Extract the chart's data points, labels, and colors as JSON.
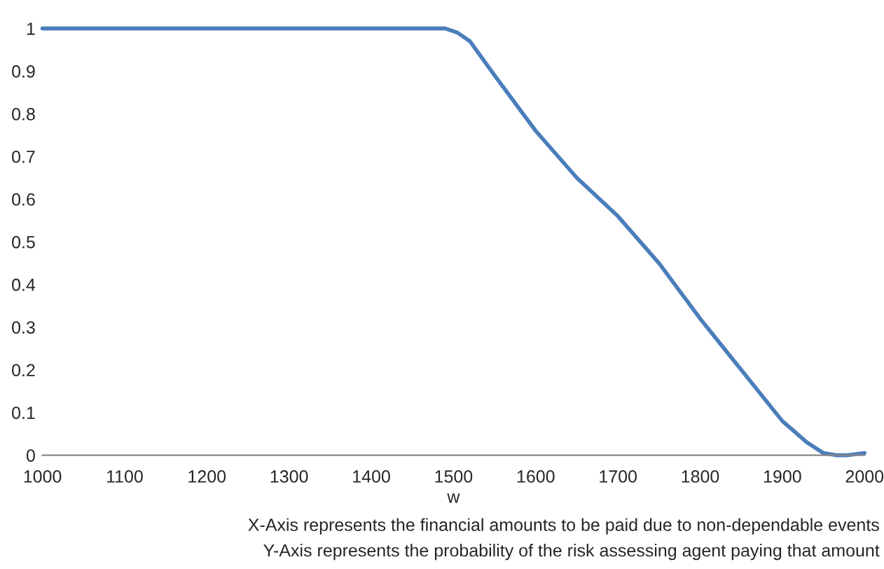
{
  "chart_data": {
    "type": "line",
    "xlabel": "w",
    "x": [
      1000,
      1100,
      1200,
      1300,
      1400,
      1450,
      1470,
      1490,
      1505,
      1520,
      1550,
      1600,
      1650,
      1700,
      1750,
      1800,
      1850,
      1900,
      1930,
      1950,
      1965,
      1980,
      2000
    ],
    "series": [
      {
        "color": "#4a7ebb",
        "values": [
          1,
          1,
          1,
          1,
          1,
          1,
          1,
          1,
          0.99,
          0.97,
          0.89,
          0.76,
          0.65,
          0.56,
          0.45,
          0.32,
          0.2,
          0.08,
          0.03,
          0.005,
          0,
          0,
          0.005
        ]
      }
    ],
    "xlim": [
      1000,
      2000
    ],
    "xticks": [
      1000,
      1100,
      1200,
      1300,
      1400,
      1500,
      1600,
      1700,
      1800,
      1900,
      2000
    ],
    "ylim": [
      0,
      1
    ],
    "yticks": [
      0,
      0.1,
      0.2,
      0.3,
      0.4,
      0.5,
      0.6,
      0.7,
      0.8,
      0.9,
      1
    ],
    "grid": false,
    "legend": false,
    "annotations": [
      "X-Axis represents the financial amounts to be paid due to non-dependable events",
      "Y-Axis represents the probability of the risk assessing agent paying that amount"
    ]
  }
}
